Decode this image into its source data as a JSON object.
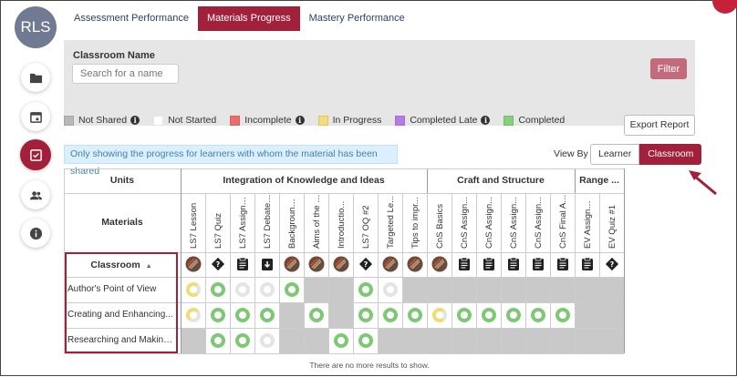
{
  "user": {
    "initials": "RLS"
  },
  "tabs": [
    {
      "label": "Assessment Performance",
      "active": false
    },
    {
      "label": "Materials Progress",
      "active": true
    },
    {
      "label": "Mastery Performance",
      "active": false
    }
  ],
  "filter": {
    "label": "Classroom Name",
    "placeholder": "Search for a name",
    "button": "Filter"
  },
  "legend": [
    {
      "label": "Not Shared",
      "color": "#b8b8b8",
      "info": true
    },
    {
      "label": "Not Started",
      "color": "#ffffff",
      "info": false
    },
    {
      "label": "Incomplete",
      "color": "#ee6b6b",
      "info": true
    },
    {
      "label": "In Progress",
      "color": "#f3dc7a",
      "info": false
    },
    {
      "label": "Completed Late",
      "color": "#b77be8",
      "info": true
    },
    {
      "label": "Completed",
      "color": "#86cf7c",
      "info": false
    }
  ],
  "export_button": "Export Report",
  "notice": "Only showing the progress for learners with whom the material has been shared",
  "view_by": {
    "label": "View By",
    "options": [
      "Learner",
      "Classroom"
    ],
    "selected": "Classroom"
  },
  "table": {
    "units_header": "Units",
    "materials_header": "Materials",
    "classroom_header": "Classroom",
    "groups": [
      {
        "label": "Integration of Knowledge and Ideas",
        "cols": 10
      },
      {
        "label": "Craft and Structure",
        "cols": 6
      },
      {
        "label": "Range ...",
        "cols": 2
      }
    ],
    "materials": [
      {
        "label": "LS7 Lesson",
        "icon": "book"
      },
      {
        "label": "LS7 Quiz",
        "icon": "quiz"
      },
      {
        "label": "LS7 Assignm...",
        "icon": "clipboard"
      },
      {
        "label": "LS7 Debate ...",
        "icon": "download"
      },
      {
        "label": "Background ...",
        "icon": "book"
      },
      {
        "label": "Aims of the I...",
        "icon": "book"
      },
      {
        "label": "Introductio...",
        "icon": "book"
      },
      {
        "label": "LS7 OQ #2",
        "icon": "quiz"
      },
      {
        "label": "Targeted Le...",
        "icon": "book"
      },
      {
        "label": "Tips to impr...",
        "icon": "book"
      },
      {
        "label": "CnS Basics",
        "icon": "book"
      },
      {
        "label": "CnS Assign...",
        "icon": "clipboard"
      },
      {
        "label": "CnS Assign...",
        "icon": "clipboard"
      },
      {
        "label": "CnS Assign...",
        "icon": "clipboard"
      },
      {
        "label": "CnS Assign...",
        "icon": "clipboard"
      },
      {
        "label": "CnS Final As...",
        "icon": "clipboard"
      },
      {
        "label": "EV Assignme...",
        "icon": "clipboard"
      },
      {
        "label": "EV Quiz #1",
        "icon": "quiz"
      }
    ],
    "rows": [
      {
        "label": "Author's Point of View",
        "cells": [
          "yellow",
          "green",
          "empty",
          "empty",
          "green",
          "gray",
          "gray",
          "green",
          "empty",
          "gray",
          "gray",
          "gray",
          "gray",
          "gray",
          "gray",
          "gray",
          "gray",
          "gray"
        ]
      },
      {
        "label": "Creating and Enhancing...",
        "cells": [
          "yellow",
          "green",
          "green",
          "green",
          "gray",
          "green",
          "gray",
          "green",
          "green",
          "green",
          "yellow",
          "green",
          "green",
          "green",
          "green",
          "green",
          "gray",
          "gray"
        ]
      },
      {
        "label": "Researching and Making...",
        "cells": [
          "gray",
          "green",
          "green",
          "empty",
          "gray",
          "gray",
          "green",
          "green",
          "gray",
          "gray",
          "gray",
          "gray",
          "gray",
          "gray",
          "gray",
          "gray",
          "gray",
          "gray"
        ]
      }
    ]
  },
  "footer": "There are no more results to show.",
  "colors": {
    "accent": "#a3203a",
    "complete": "#7ec875",
    "progress": "#f1dc73",
    "gray": "#c9c9c9"
  }
}
